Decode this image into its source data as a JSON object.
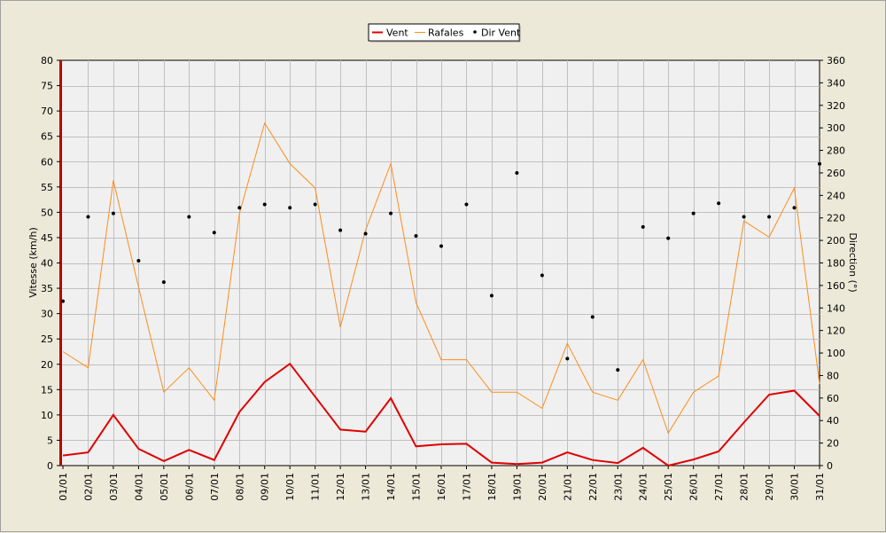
{
  "chart_data": {
    "type": "line",
    "title": "",
    "x": [
      "01/01",
      "02/01",
      "03/01",
      "04/01",
      "05/01",
      "06/01",
      "07/01",
      "08/01",
      "09/01",
      "10/01",
      "11/01",
      "12/01",
      "13/01",
      "14/01",
      "15/01",
      "16/01",
      "17/01",
      "18/01",
      "19/01",
      "20/01",
      "21/01",
      "22/01",
      "23/01",
      "24/01",
      "25/01",
      "26/01",
      "27/01",
      "28/01",
      "29/01",
      "30/01",
      "31/01"
    ],
    "ylabel": "Vitesse (km/h)",
    "ylabel_right": "Direction (°)",
    "ylim": [
      0,
      80
    ],
    "ylim_right": [
      0,
      360
    ],
    "yticks": [
      0,
      5,
      10,
      15,
      20,
      25,
      30,
      35,
      40,
      45,
      50,
      55,
      60,
      65,
      70,
      75,
      80
    ],
    "yticks_right": [
      0,
      20,
      40,
      60,
      80,
      100,
      120,
      140,
      160,
      180,
      200,
      220,
      240,
      260,
      280,
      300,
      320,
      340,
      360
    ],
    "grid": true,
    "legend_position": "top-center",
    "series": [
      {
        "name": "Vent",
        "color": "#e00000",
        "style": "line",
        "axis": "left",
        "values": [
          2.0,
          2.6,
          10.0,
          3.3,
          0.9,
          3.1,
          1.1,
          10.6,
          16.5,
          20.1,
          13.6,
          7.1,
          6.7,
          13.3,
          3.8,
          4.2,
          4.3,
          0.6,
          0.3,
          0.6,
          2.6,
          1.1,
          0.5,
          3.5,
          0.0,
          1.2,
          2.8,
          8.5,
          14.0,
          14.8,
          9.8
        ]
      },
      {
        "name": "Rafales",
        "color": "#ff8c1a",
        "style": "line",
        "axis": "left",
        "values": [
          22.5,
          19.3,
          56.3,
          35.2,
          14.5,
          19.3,
          12.9,
          49.8,
          67.6,
          59.6,
          54.8,
          27.3,
          46.5,
          59.6,
          32.2,
          20.9,
          20.9,
          14.5,
          14.5,
          11.3,
          24.1,
          14.5,
          12.9,
          20.9,
          6.4,
          14.5,
          17.7,
          48.3,
          45.1,
          54.8,
          16.1
        ]
      },
      {
        "name": "Dir Vent",
        "color": "#000000",
        "style": "points",
        "axis": "right",
        "values": [
          146,
          221,
          224,
          182,
          163,
          221,
          207,
          229,
          232,
          229,
          232,
          209,
          206,
          224,
          204,
          195,
          232,
          151,
          260,
          169,
          95,
          132,
          85,
          212,
          202,
          224,
          233,
          221,
          221,
          229,
          268
        ]
      }
    ]
  }
}
